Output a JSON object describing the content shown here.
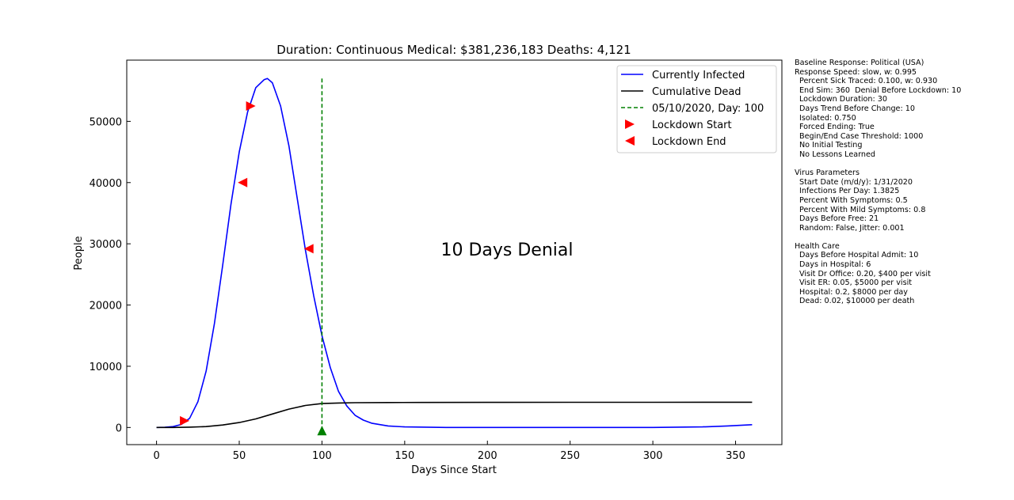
{
  "chart_data": {
    "type": "line",
    "title": "Duration: Continuous    Medical: $381,236,183    Deaths: 4,121",
    "xlabel": "Days Since Start",
    "ylabel": "People",
    "xlim": [
      -18,
      378
    ],
    "ylim": [
      -2800,
      60000
    ],
    "xticks": [
      0,
      50,
      100,
      150,
      200,
      250,
      300,
      350
    ],
    "yticks": [
      0,
      10000,
      20000,
      30000,
      40000,
      50000
    ],
    "annotation": "10 Days Denial",
    "legend_position": "top-right",
    "series": [
      {
        "name": "Currently Infected",
        "color": "#0000ff",
        "style": "solid",
        "x": [
          0,
          5,
          10,
          15,
          20,
          25,
          30,
          35,
          40,
          45,
          50,
          55,
          60,
          65,
          67,
          70,
          75,
          80,
          85,
          90,
          95,
          100,
          105,
          110,
          115,
          120,
          125,
          130,
          140,
          150,
          175,
          200,
          250,
          300,
          330,
          345,
          360
        ],
        "values": [
          0,
          30,
          150,
          500,
          1500,
          4200,
          9200,
          17000,
          26500,
          36500,
          45000,
          51500,
          55500,
          56800,
          57000,
          56300,
          52500,
          46000,
          37500,
          29000,
          21500,
          15000,
          9800,
          5900,
          3500,
          2000,
          1200,
          700,
          250,
          100,
          0,
          0,
          0,
          0,
          100,
          250,
          450
        ]
      },
      {
        "name": "Cumulative Dead",
        "color": "#000000",
        "style": "solid",
        "x": [
          0,
          10,
          20,
          30,
          40,
          50,
          60,
          70,
          80,
          90,
          100,
          110,
          120,
          140,
          160,
          200,
          250,
          300,
          360
        ],
        "values": [
          0,
          10,
          50,
          150,
          400,
          800,
          1400,
          2200,
          3000,
          3600,
          3900,
          4000,
          4050,
          4080,
          4090,
          4100,
          4110,
          4115,
          4121
        ]
      }
    ],
    "vline": {
      "name": "05/10/2020, Day: 100",
      "x": 100,
      "y_top": 57000,
      "color": "#008000",
      "style": "dashed"
    },
    "markers": [
      {
        "name": "Lockdown Start",
        "color": "#ff0000",
        "shape": "triangle-right",
        "points": [
          {
            "x": 17,
            "y": 1100
          },
          {
            "x": 57,
            "y": 52500
          }
        ]
      },
      {
        "name": "Lockdown End",
        "color": "#ff0000",
        "shape": "triangle-left",
        "points": [
          {
            "x": 52,
            "y": 40000
          },
          {
            "x": 92,
            "y": 29200
          }
        ]
      },
      {
        "name": "",
        "color": "#008000",
        "shape": "triangle-up",
        "points": [
          {
            "x": 100,
            "y": -500
          }
        ]
      }
    ]
  },
  "side_panel": [
    {
      "heading": "Baseline Response: Political (USA)",
      "lines": [
        "Response Speed: slow, w: 0.995",
        "Percent Sick Traced: 0.100, w: 0.930",
        "End Sim: 360  Denial Before Lockdown: 10",
        "Lockdown Duration: 30",
        "Days Trend Before Change: 10",
        "Isolated: 0.750",
        "Forced Ending: True",
        "Begin/End Case Threshold: 1000",
        "No Initial Testing",
        "No Lessons Learned"
      ]
    },
    {
      "heading": "Virus Parameters",
      "lines": [
        "Start Date (m/d/y): 1/31/2020",
        "Infections Per Day: 1.3825",
        "Percent With Symptoms: 0.5",
        "Percent With Mild Symptoms: 0.8",
        "Days Before Free: 21",
        "Random: False, Jitter: 0.001"
      ]
    },
    {
      "heading": "Health Care",
      "lines": [
        "Days Before Hospital Admit: 10",
        "Days in Hospital: 6",
        "Visit Dr Office: 0.20, $400 per visit",
        "Visit ER: 0.05, $5000 per visit",
        "Hospital: 0.2, $8000 per day",
        "Dead: 0.02, $10000 per death"
      ]
    }
  ]
}
